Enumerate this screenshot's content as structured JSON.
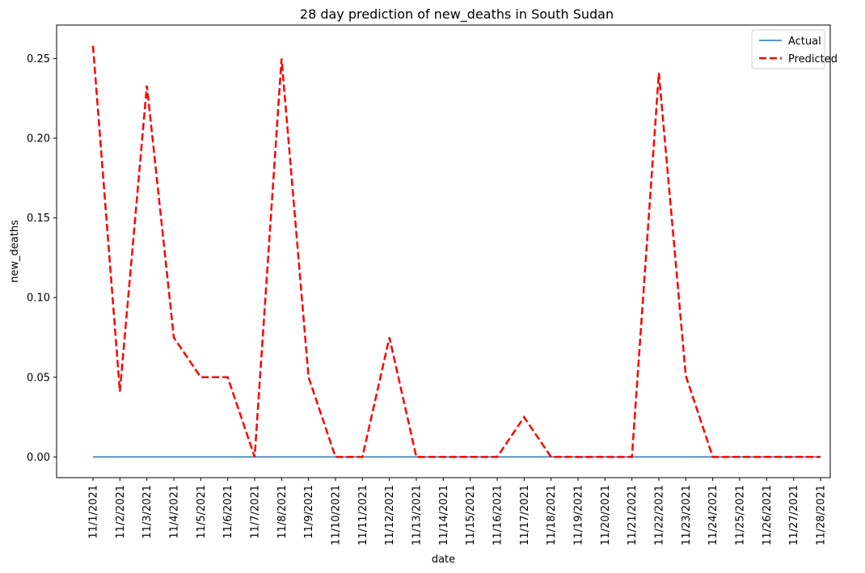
{
  "chart_data": {
    "type": "line",
    "title": "28 day prediction of new_deaths in South Sudan",
    "xlabel": "date",
    "ylabel": "new_deaths",
    "categories": [
      "11/1/2021",
      "11/2/2021",
      "11/3/2021",
      "11/4/2021",
      "11/5/2021",
      "11/6/2021",
      "11/7/2021",
      "11/8/2021",
      "11/9/2021",
      "11/10/2021",
      "11/11/2021",
      "11/12/2021",
      "11/13/2021",
      "11/14/2021",
      "11/15/2021",
      "11/16/2021",
      "11/17/2021",
      "11/18/2021",
      "11/19/2021",
      "11/20/2021",
      "11/21/2021",
      "11/22/2021",
      "11/23/2021",
      "11/24/2021",
      "11/25/2021",
      "11/26/2021",
      "11/27/2021",
      "11/28/2021"
    ],
    "ylim": [
      -0.013,
      0.271
    ],
    "yticks": [
      0.0,
      0.05,
      0.1,
      0.15,
      0.2,
      0.25
    ],
    "ytick_labels": [
      "0.00",
      "0.05",
      "0.10",
      "0.15",
      "0.20",
      "0.25"
    ],
    "grid": false,
    "legend_position": "top-right",
    "series": [
      {
        "name": "Actual",
        "color": "#1f77b4",
        "style": "solid",
        "values": [
          0,
          0,
          0,
          0,
          0,
          0,
          0,
          0,
          0,
          0,
          0,
          0,
          0,
          0,
          0,
          0,
          0,
          0,
          0,
          0,
          0,
          0,
          0,
          0,
          0,
          0,
          0,
          0
        ]
      },
      {
        "name": "Predicted",
        "color": "#ff0000",
        "style": "dashed",
        "values": [
          0.258,
          0.041,
          0.233,
          0.075,
          0.05,
          0.05,
          0,
          0.25,
          0.05,
          0,
          0,
          0.075,
          0,
          0,
          0,
          0,
          0.025,
          0,
          0,
          0,
          0,
          0.241,
          0.051,
          0,
          0,
          0,
          0,
          0
        ]
      }
    ]
  }
}
